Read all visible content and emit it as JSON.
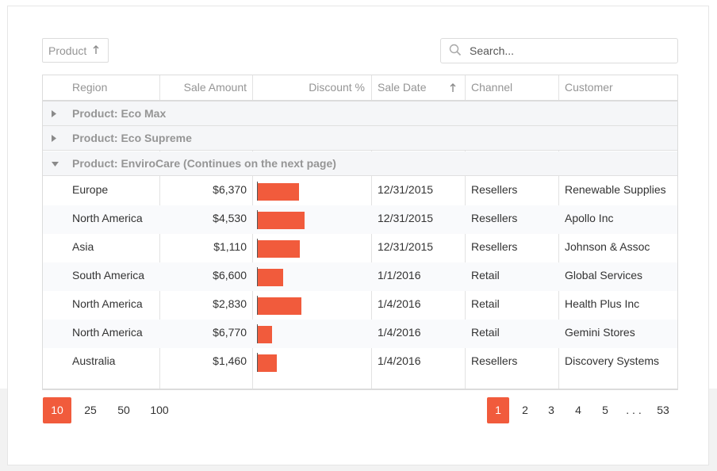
{
  "toolbar": {
    "group_chip_label": "Product",
    "search_placeholder": "Search..."
  },
  "columns": [
    "Region",
    "Sale Amount",
    "Discount %",
    "Sale Date",
    "Channel",
    "Customer"
  ],
  "sorted_column": "Sale Date",
  "groups": [
    {
      "label": "Product: Eco Max",
      "expanded": false
    },
    {
      "label": "Product: Eco Supreme",
      "expanded": false
    },
    {
      "label": "Product: EnviroCare (Continues on the next page)",
      "expanded": true
    }
  ],
  "rows": [
    {
      "region": "Europe",
      "amount": "$6,370",
      "discount": 0.37,
      "date": "12/31/2015",
      "channel": "Resellers",
      "customer": "Renewable Supplies"
    },
    {
      "region": "North America",
      "amount": "$4,530",
      "discount": 0.42,
      "date": "12/31/2015",
      "channel": "Resellers",
      "customer": "Apollo Inc"
    },
    {
      "region": "Asia",
      "amount": "$1,110",
      "discount": 0.38,
      "date": "12/31/2015",
      "channel": "Resellers",
      "customer": "Johnson & Assoc"
    },
    {
      "region": "South America",
      "amount": "$6,600",
      "discount": 0.23,
      "date": "1/1/2016",
      "channel": "Retail",
      "customer": "Global Services"
    },
    {
      "region": "North America",
      "amount": "$2,830",
      "discount": 0.39,
      "date": "1/4/2016",
      "channel": "Retail",
      "customer": "Health Plus Inc"
    },
    {
      "region": "North America",
      "amount": "$6,770",
      "discount": 0.13,
      "date": "1/4/2016",
      "channel": "Retail",
      "customer": "Gemini Stores"
    },
    {
      "region": "Australia",
      "amount": "$1,460",
      "discount": 0.17,
      "date": "1/4/2016",
      "channel": "Resellers",
      "customer": "Discovery Systems"
    }
  ],
  "pager": {
    "page_sizes": [
      "10",
      "25",
      "50",
      "100"
    ],
    "selected_page_size": "10",
    "pages": [
      "1",
      "2",
      "3",
      "4",
      "5"
    ],
    "ellipsis": ". . .",
    "last_page": "53",
    "current_page": "1"
  },
  "colors": {
    "accent": "#f15b3c"
  }
}
